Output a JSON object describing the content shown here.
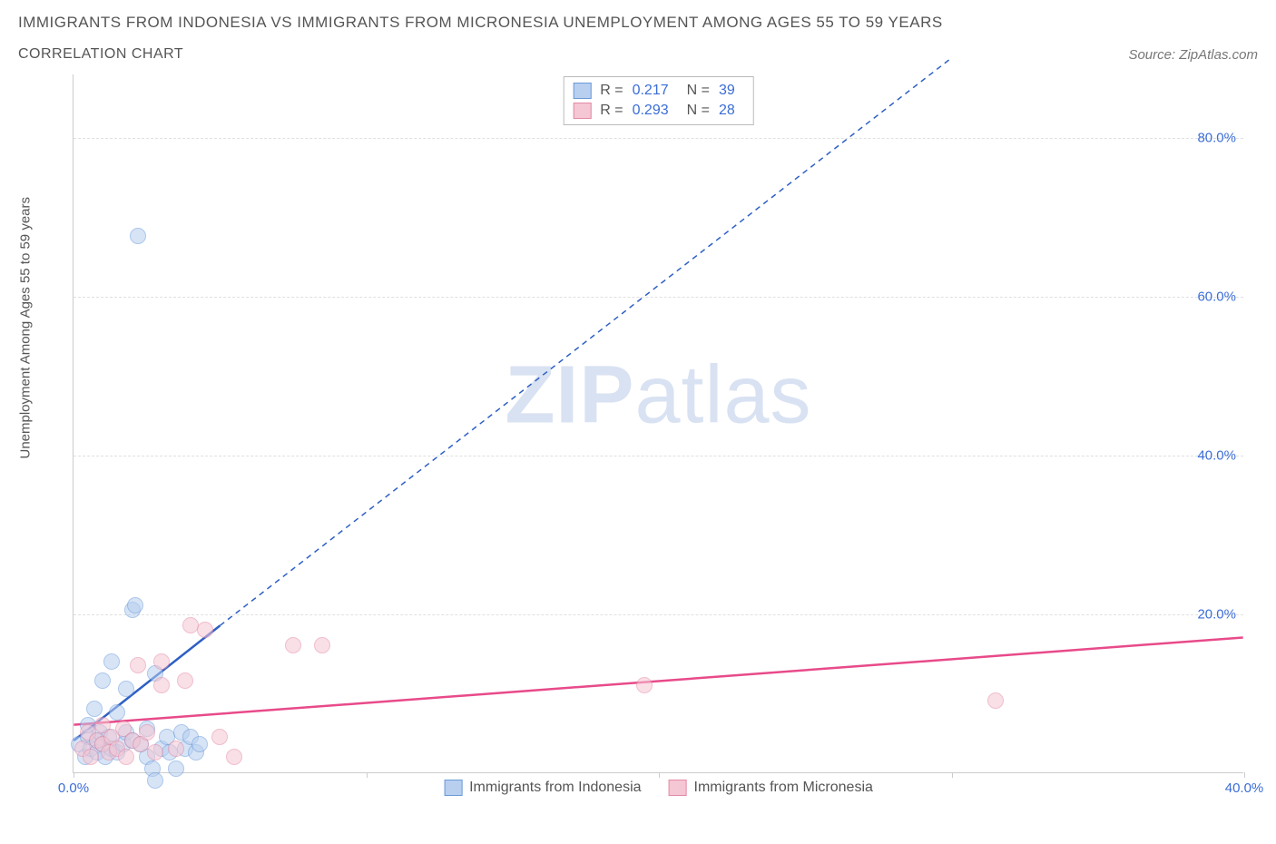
{
  "title": "IMMIGRANTS FROM INDONESIA VS IMMIGRANTS FROM MICRONESIA UNEMPLOYMENT AMONG AGES 55 TO 59 YEARS",
  "subtitle": "CORRELATION CHART",
  "source": "Source: ZipAtlas.com",
  "watermark_zip": "ZIP",
  "watermark_atlas": "atlas",
  "ylabel": "Unemployment Among Ages 55 to 59 years",
  "chart": {
    "type": "scatter",
    "xlim": [
      0,
      40
    ],
    "ylim": [
      0,
      88
    ],
    "xticks": [
      0,
      10,
      20,
      30,
      40
    ],
    "xtick_labels": [
      "0.0%",
      "",
      "",
      "",
      "40.0%"
    ],
    "yticks": [
      20,
      40,
      60,
      80
    ],
    "ytick_labels": [
      "20.0%",
      "40.0%",
      "60.0%",
      "80.0%"
    ],
    "grid_color": "#e0e0e0",
    "axis_color": "#cccccc",
    "background": "#ffffff",
    "label_color": "#3b6dd6",
    "text_color": "#555555",
    "marker_radius": 9,
    "marker_opacity": 0.55
  },
  "series": [
    {
      "name": "Immigrants from Indonesia",
      "fill": "#b8cff0",
      "stroke": "#6a9ad8",
      "line_color": "#2e5fc4",
      "R": "0.217",
      "N": "39",
      "trend": {
        "x1": 0,
        "y1": 4.0,
        "x2": 5.0,
        "y2": 18.5,
        "solid_until_x": 5.0,
        "extend_to_x": 30,
        "extend_to_y": 90
      },
      "points": [
        [
          0.2,
          3.5
        ],
        [
          0.4,
          2.0
        ],
        [
          0.5,
          4.5
        ],
        [
          0.5,
          6.0
        ],
        [
          0.6,
          3.0
        ],
        [
          0.7,
          8.0
        ],
        [
          0.8,
          4.0
        ],
        [
          0.8,
          2.5
        ],
        [
          0.9,
          5.0
        ],
        [
          1.0,
          3.5
        ],
        [
          1.0,
          11.5
        ],
        [
          1.1,
          2.0
        ],
        [
          1.2,
          4.5
        ],
        [
          1.3,
          14.0
        ],
        [
          1.3,
          3.0
        ],
        [
          1.5,
          7.5
        ],
        [
          1.5,
          2.5
        ],
        [
          1.7,
          3.5
        ],
        [
          1.8,
          5.0
        ],
        [
          1.8,
          10.5
        ],
        [
          2.0,
          4.0
        ],
        [
          2.0,
          20.5
        ],
        [
          2.1,
          21.0
        ],
        [
          2.3,
          3.5
        ],
        [
          2.5,
          2.0
        ],
        [
          2.5,
          5.5
        ],
        [
          2.7,
          0.5
        ],
        [
          2.8,
          -1.0
        ],
        [
          2.8,
          12.5
        ],
        [
          3.0,
          3.0
        ],
        [
          3.2,
          4.5
        ],
        [
          3.3,
          2.5
        ],
        [
          3.5,
          0.5
        ],
        [
          3.7,
          5.0
        ],
        [
          3.8,
          3.0
        ],
        [
          4.0,
          4.5
        ],
        [
          4.2,
          2.5
        ],
        [
          4.3,
          3.5
        ],
        [
          2.2,
          67.5
        ]
      ]
    },
    {
      "name": "Immigrants from Micronesia",
      "fill": "#f5c6d3",
      "stroke": "#e48aa6",
      "line_color": "#e84a8a",
      "R": "0.293",
      "N": "28",
      "trend": {
        "x1": 0,
        "y1": 6.0,
        "x2": 40,
        "y2": 17.0,
        "solid_until_x": 40
      },
      "points": [
        [
          0.3,
          3.0
        ],
        [
          0.5,
          5.0
        ],
        [
          0.6,
          2.0
        ],
        [
          0.8,
          4.0
        ],
        [
          1.0,
          3.5
        ],
        [
          1.0,
          6.0
        ],
        [
          1.2,
          2.5
        ],
        [
          1.3,
          4.5
        ],
        [
          1.5,
          3.0
        ],
        [
          1.7,
          5.5
        ],
        [
          1.8,
          2.0
        ],
        [
          2.0,
          4.0
        ],
        [
          2.2,
          13.5
        ],
        [
          2.3,
          3.5
        ],
        [
          2.5,
          5.0
        ],
        [
          2.8,
          2.5
        ],
        [
          3.0,
          14.0
        ],
        [
          3.0,
          11.0
        ],
        [
          3.5,
          3.0
        ],
        [
          3.8,
          11.5
        ],
        [
          4.0,
          18.5
        ],
        [
          4.5,
          18.0
        ],
        [
          5.0,
          4.5
        ],
        [
          5.5,
          2.0
        ],
        [
          7.5,
          16.0
        ],
        [
          8.5,
          16.0
        ],
        [
          19.5,
          11.0
        ],
        [
          31.5,
          9.0
        ]
      ]
    }
  ],
  "stats_labels": {
    "R": "R =",
    "N": "N ="
  },
  "legend": {
    "item1": "Immigrants from Indonesia",
    "item2": "Immigrants from Micronesia"
  }
}
